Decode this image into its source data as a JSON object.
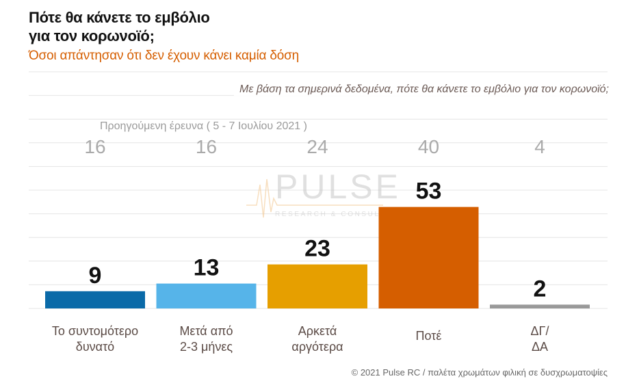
{
  "title_line1": "Πότε θα κάνετε το εμβόλιο",
  "title_line2": "για τον κορωνοϊό;",
  "subtitle": "Όσοι απάντησαν ότι δεν έχουν κάνει καμία δόση",
  "question": "Με βάση τα σημερινά δεδομένα, πότε θα κάνετε το εμβόλιο για τον κορωνοϊό;",
  "previous_survey_label": "Προηγούμενη έρευνα  ( 5 - 7 Ιουλίου 2021 )",
  "footer": "© 2021 Pulse RC   /   παλέτα χρωμάτων φιλική σε δυσχρωματοψίες",
  "watermark": {
    "name": "PULSE",
    "tagline": "RESEARCH & CONSULTING"
  },
  "chart_data": {
    "type": "bar",
    "categories": [
      [
        "Το συντομότερο",
        "δυνατό"
      ],
      [
        "Μετά από",
        "2-3 μήνες"
      ],
      [
        "Αρκετά",
        "αργότερα"
      ],
      [
        "Ποτέ"
      ],
      [
        "ΔΓ/",
        "ΔΑ"
      ]
    ],
    "values": [
      9,
      13,
      23,
      53,
      2
    ],
    "previous_values": [
      16,
      16,
      24,
      40,
      4
    ],
    "colors": [
      "#0a6aa8",
      "#56b4e9",
      "#e69f00",
      "#d55e00",
      "#999999"
    ],
    "grid": true
  }
}
